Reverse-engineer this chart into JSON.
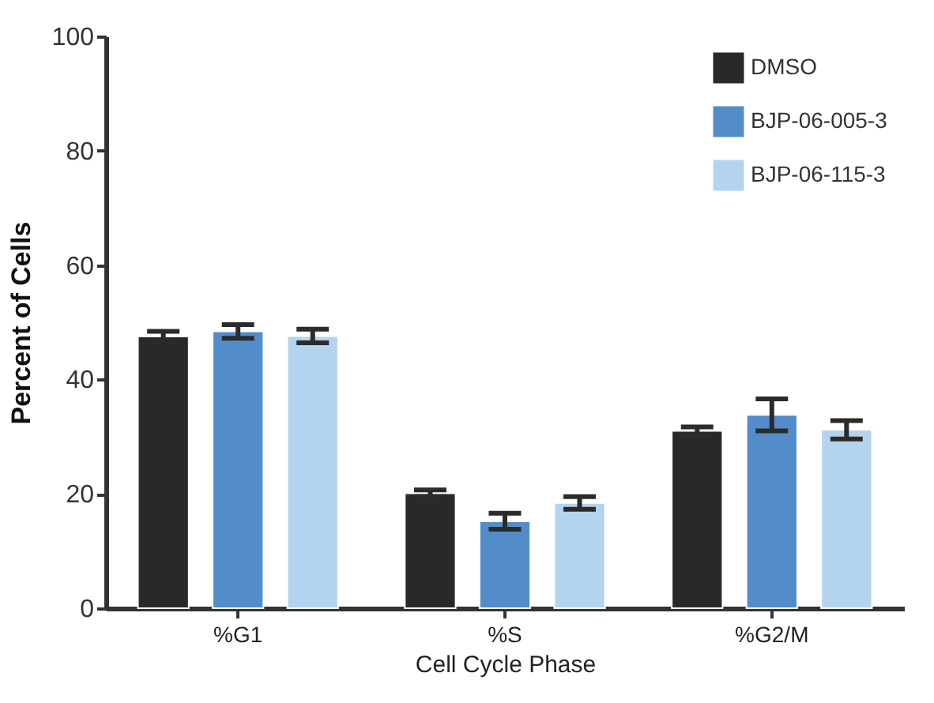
{
  "chart_data": {
    "type": "bar",
    "xlabel": "Cell Cycle Phase",
    "ylabel": "Percent of Cells",
    "categories": [
      "%G1",
      "%S",
      "%G2/M"
    ],
    "series": [
      {
        "name": "DMSO",
        "color": "#292929",
        "values": [
          47.5,
          20.1,
          31.0
        ],
        "errors": [
          0.9,
          0.6,
          0.7
        ]
      },
      {
        "name": "BJP-06-005-3",
        "color": "#538dc9",
        "values": [
          48.4,
          15.2,
          33.8
        ],
        "errors": [
          1.2,
          1.4,
          2.8
        ]
      },
      {
        "name": "BJP-06-115-3",
        "color": "#b4d3ef",
        "values": [
          47.6,
          18.4,
          31.2
        ],
        "errors": [
          1.2,
          1.1,
          1.6
        ]
      }
    ],
    "ylim": [
      0,
      100
    ],
    "yticks": [
      0,
      20,
      40,
      60,
      80,
      100
    ],
    "grid": false,
    "legend": "top right"
  }
}
